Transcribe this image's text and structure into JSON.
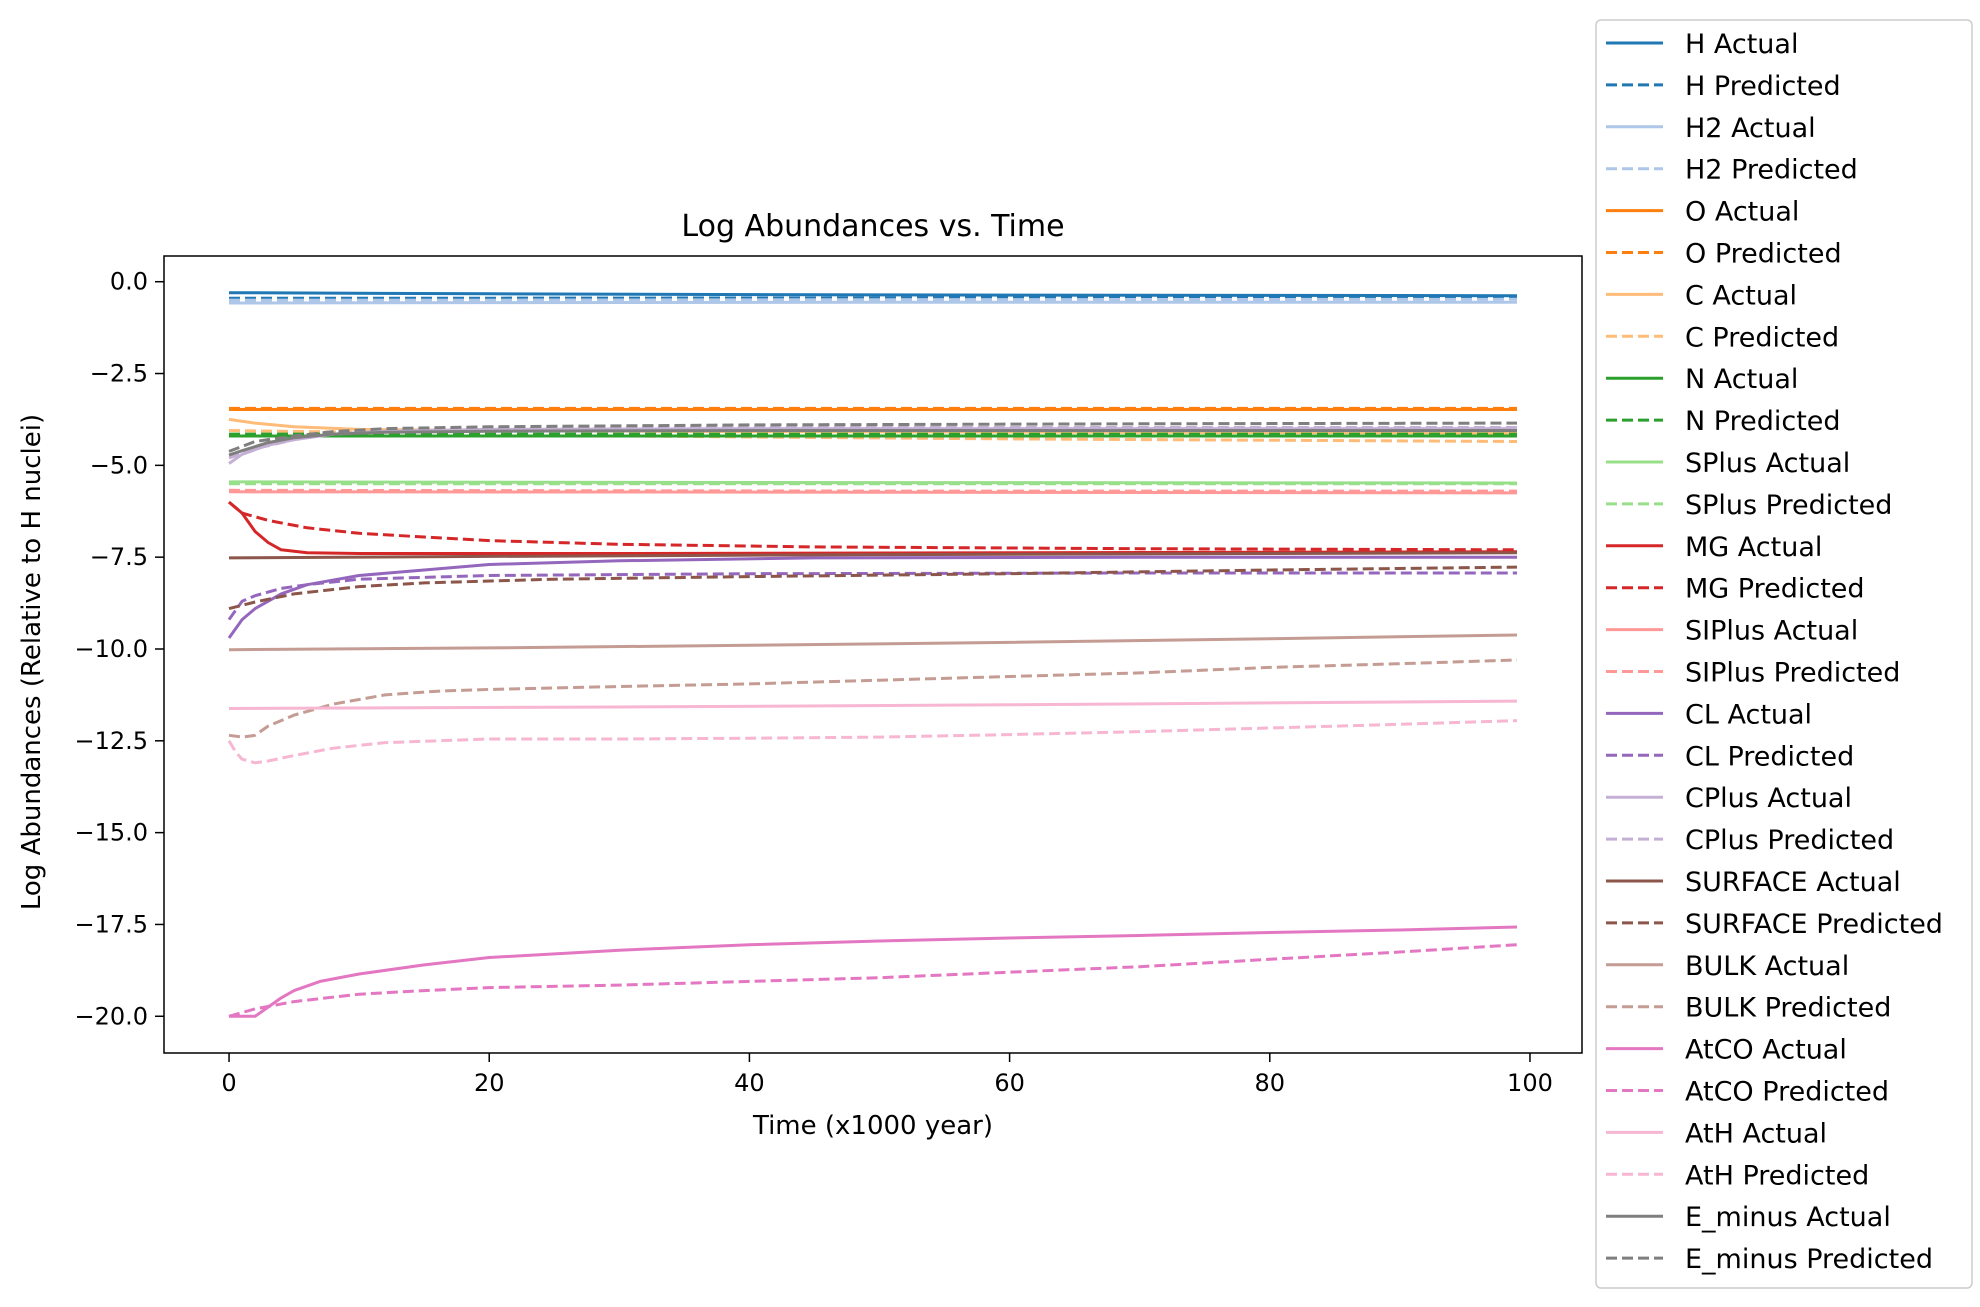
{
  "chart_data": {
    "type": "line",
    "title": "Log Abundances vs. Time",
    "xlabel": "Time (x1000 year)",
    "ylabel": "Log Abundances (Relative to H nuclei)",
    "xlim": [
      -5,
      104
    ],
    "ylim": [
      -21,
      0.7
    ],
    "xticks": [
      0,
      20,
      40,
      60,
      80,
      100
    ],
    "xtick_labels": [
      "0",
      "20",
      "40",
      "60",
      "80",
      "100"
    ],
    "yticks": [
      0,
      -2.5,
      -5,
      -7.5,
      -10,
      -12.5,
      -15,
      -17.5,
      -20
    ],
    "ytick_labels": [
      "0.0",
      "−2.5",
      "−5.0",
      "−7.5",
      "−10.0",
      "−12.5",
      "−15.0",
      "−17.5",
      "−20.0"
    ],
    "grid": false,
    "legend_position": "outside-right",
    "series": [
      {
        "name": "H Actual",
        "color": "#1f77b4",
        "dash": false,
        "points": [
          [
            0,
            -0.3
          ],
          [
            20,
            -0.33
          ],
          [
            50,
            -0.36
          ],
          [
            99,
            -0.38
          ]
        ]
      },
      {
        "name": "H Predicted",
        "color": "#1f77b4",
        "dash": true,
        "points": [
          [
            0,
            -0.45
          ],
          [
            20,
            -0.45
          ],
          [
            50,
            -0.44
          ],
          [
            99,
            -0.44
          ]
        ]
      },
      {
        "name": "H2 Actual",
        "color": "#aec7e8",
        "dash": false,
        "points": [
          [
            0,
            -0.58
          ],
          [
            20,
            -0.57
          ],
          [
            50,
            -0.56
          ],
          [
            99,
            -0.56
          ]
        ]
      },
      {
        "name": "H2 Predicted",
        "color": "#aec7e8",
        "dash": true,
        "points": [
          [
            0,
            -0.5
          ],
          [
            20,
            -0.5
          ],
          [
            50,
            -0.49
          ],
          [
            99,
            -0.48
          ]
        ]
      },
      {
        "name": "O Actual",
        "color": "#ff7f0e",
        "dash": false,
        "points": [
          [
            0,
            -3.48
          ],
          [
            50,
            -3.48
          ],
          [
            99,
            -3.48
          ]
        ]
      },
      {
        "name": "O Predicted",
        "color": "#ff7f0e",
        "dash": true,
        "points": [
          [
            0,
            -3.45
          ],
          [
            50,
            -3.45
          ],
          [
            99,
            -3.45
          ]
        ]
      },
      {
        "name": "C Actual",
        "color": "#ffbb78",
        "dash": false,
        "points": [
          [
            0,
            -3.75
          ],
          [
            2,
            -3.85
          ],
          [
            5,
            -3.95
          ],
          [
            10,
            -4.02
          ],
          [
            20,
            -4.05
          ],
          [
            40,
            -4.08
          ],
          [
            70,
            -4.1
          ],
          [
            99,
            -4.12
          ]
        ]
      },
      {
        "name": "C Predicted",
        "color": "#ffbb78",
        "dash": true,
        "points": [
          [
            0,
            -4.05
          ],
          [
            10,
            -4.1
          ],
          [
            30,
            -4.2
          ],
          [
            60,
            -4.28
          ],
          [
            99,
            -4.35
          ]
        ]
      },
      {
        "name": "N Actual",
        "color": "#2ca02c",
        "dash": false,
        "points": [
          [
            0,
            -4.2
          ],
          [
            50,
            -4.2
          ],
          [
            99,
            -4.2
          ]
        ]
      },
      {
        "name": "N Predicted",
        "color": "#2ca02c",
        "dash": true,
        "points": [
          [
            0,
            -4.15
          ],
          [
            50,
            -4.15
          ],
          [
            99,
            -4.15
          ]
        ]
      },
      {
        "name": "SPlus Actual",
        "color": "#98df8a",
        "dash": false,
        "points": [
          [
            0,
            -5.45
          ],
          [
            50,
            -5.47
          ],
          [
            99,
            -5.48
          ]
        ]
      },
      {
        "name": "SPlus Predicted",
        "color": "#98df8a",
        "dash": true,
        "points": [
          [
            0,
            -5.5
          ],
          [
            50,
            -5.5
          ],
          [
            99,
            -5.5
          ]
        ]
      },
      {
        "name": "MG Actual",
        "color": "#d62728",
        "dash": false,
        "points": [
          [
            0,
            -6.0
          ],
          [
            1,
            -6.3
          ],
          [
            2,
            -6.8
          ],
          [
            3,
            -7.1
          ],
          [
            4,
            -7.3
          ],
          [
            6,
            -7.38
          ],
          [
            10,
            -7.4
          ],
          [
            30,
            -7.4
          ],
          [
            60,
            -7.38
          ],
          [
            99,
            -7.35
          ]
        ]
      },
      {
        "name": "MG Predicted",
        "color": "#d62728",
        "dash": true,
        "points": [
          [
            0,
            -6.0
          ],
          [
            1,
            -6.3
          ],
          [
            3,
            -6.5
          ],
          [
            6,
            -6.7
          ],
          [
            10,
            -6.85
          ],
          [
            15,
            -6.95
          ],
          [
            20,
            -7.05
          ],
          [
            30,
            -7.15
          ],
          [
            45,
            -7.22
          ],
          [
            70,
            -7.27
          ],
          [
            99,
            -7.3
          ]
        ]
      },
      {
        "name": "SIPlus Actual",
        "color": "#ff9896",
        "dash": false,
        "points": [
          [
            0,
            -5.72
          ],
          [
            50,
            -5.73
          ],
          [
            99,
            -5.75
          ]
        ]
      },
      {
        "name": "SIPlus Predicted",
        "color": "#ff9896",
        "dash": true,
        "points": [
          [
            0,
            -5.68
          ],
          [
            50,
            -5.7
          ],
          [
            99,
            -5.7
          ]
        ]
      },
      {
        "name": "CL Actual",
        "color": "#9467bd",
        "dash": false,
        "points": [
          [
            0,
            -9.7
          ],
          [
            1,
            -9.2
          ],
          [
            2,
            -8.9
          ],
          [
            4,
            -8.5
          ],
          [
            6,
            -8.25
          ],
          [
            10,
            -8.0
          ],
          [
            15,
            -7.85
          ],
          [
            20,
            -7.7
          ],
          [
            30,
            -7.6
          ],
          [
            45,
            -7.52
          ],
          [
            70,
            -7.5
          ],
          [
            99,
            -7.5
          ]
        ]
      },
      {
        "name": "CL Predicted",
        "color": "#9467bd",
        "dash": true,
        "points": [
          [
            0,
            -9.2
          ],
          [
            1,
            -8.7
          ],
          [
            2,
            -8.55
          ],
          [
            4,
            -8.35
          ],
          [
            6,
            -8.25
          ],
          [
            10,
            -8.1
          ],
          [
            20,
            -8.0
          ],
          [
            40,
            -7.95
          ],
          [
            70,
            -7.93
          ],
          [
            99,
            -7.93
          ]
        ]
      },
      {
        "name": "CPlus Actual",
        "color": "#c5b0d5",
        "dash": false,
        "points": [
          [
            0,
            -4.95
          ],
          [
            1,
            -4.7
          ],
          [
            3,
            -4.45
          ],
          [
            5,
            -4.3
          ],
          [
            8,
            -4.15
          ],
          [
            12,
            -4.07
          ],
          [
            20,
            -4.02
          ],
          [
            40,
            -4.0
          ],
          [
            99,
            -4.0
          ]
        ]
      },
      {
        "name": "CPlus Predicted",
        "color": "#c5b0d5",
        "dash": true,
        "points": [
          [
            0,
            -4.8
          ],
          [
            2,
            -4.55
          ],
          [
            5,
            -4.3
          ],
          [
            8,
            -4.15
          ],
          [
            12,
            -4.05
          ],
          [
            20,
            -4.0
          ],
          [
            40,
            -3.97
          ],
          [
            99,
            -3.97
          ]
        ]
      },
      {
        "name": "SURFACE Actual",
        "color": "#8c564b",
        "dash": false,
        "points": [
          [
            0,
            -7.52
          ],
          [
            20,
            -7.48
          ],
          [
            50,
            -7.43
          ],
          [
            99,
            -7.38
          ]
        ]
      },
      {
        "name": "SURFACE Predicted",
        "color": "#8c564b",
        "dash": true,
        "points": [
          [
            0,
            -8.9
          ],
          [
            2,
            -8.72
          ],
          [
            5,
            -8.5
          ],
          [
            10,
            -8.3
          ],
          [
            15,
            -8.2
          ],
          [
            25,
            -8.1
          ],
          [
            40,
            -8.03
          ],
          [
            60,
            -7.95
          ],
          [
            80,
            -7.85
          ],
          [
            99,
            -7.77
          ]
        ]
      },
      {
        "name": "BULK Actual",
        "color": "#c49c94",
        "dash": false,
        "points": [
          [
            0,
            -10.02
          ],
          [
            20,
            -9.97
          ],
          [
            40,
            -9.9
          ],
          [
            60,
            -9.82
          ],
          [
            80,
            -9.72
          ],
          [
            99,
            -9.62
          ]
        ]
      },
      {
        "name": "BULK Predicted",
        "color": "#c49c94",
        "dash": true,
        "points": [
          [
            0,
            -12.35
          ],
          [
            1,
            -12.4
          ],
          [
            2,
            -12.35
          ],
          [
            3,
            -12.1
          ],
          [
            5,
            -11.8
          ],
          [
            8,
            -11.5
          ],
          [
            12,
            -11.25
          ],
          [
            16,
            -11.15
          ],
          [
            20,
            -11.1
          ],
          [
            30,
            -11.02
          ],
          [
            40,
            -10.95
          ],
          [
            50,
            -10.85
          ],
          [
            60,
            -10.75
          ],
          [
            70,
            -10.65
          ],
          [
            80,
            -10.5
          ],
          [
            90,
            -10.4
          ],
          [
            99,
            -10.3
          ]
        ]
      },
      {
        "name": "AtCO Actual",
        "color": "#e377c2",
        "dash": false,
        "points": [
          [
            0,
            -20.0
          ],
          [
            1,
            -20.0
          ],
          [
            2,
            -20.0
          ],
          [
            3,
            -19.75
          ],
          [
            4,
            -19.5
          ],
          [
            5,
            -19.3
          ],
          [
            7,
            -19.05
          ],
          [
            10,
            -18.85
          ],
          [
            15,
            -18.6
          ],
          [
            20,
            -18.4
          ],
          [
            30,
            -18.2
          ],
          [
            40,
            -18.05
          ],
          [
            50,
            -17.95
          ],
          [
            60,
            -17.87
          ],
          [
            70,
            -17.8
          ],
          [
            80,
            -17.72
          ],
          [
            90,
            -17.65
          ],
          [
            99,
            -17.57
          ]
        ]
      },
      {
        "name": "AtCO Predicted",
        "color": "#e377c2",
        "dash": true,
        "points": [
          [
            0,
            -20.0
          ],
          [
            2,
            -19.8
          ],
          [
            5,
            -19.6
          ],
          [
            10,
            -19.4
          ],
          [
            15,
            -19.3
          ],
          [
            20,
            -19.22
          ],
          [
            30,
            -19.15
          ],
          [
            40,
            -19.05
          ],
          [
            50,
            -18.95
          ],
          [
            60,
            -18.8
          ],
          [
            70,
            -18.65
          ],
          [
            80,
            -18.45
          ],
          [
            90,
            -18.25
          ],
          [
            99,
            -18.05
          ]
        ]
      },
      {
        "name": "AtH Actual",
        "color": "#f7b6d2",
        "dash": false,
        "points": [
          [
            0,
            -11.62
          ],
          [
            30,
            -11.58
          ],
          [
            60,
            -11.52
          ],
          [
            99,
            -11.42
          ]
        ]
      },
      {
        "name": "AtH Predicted",
        "color": "#f7b6d2",
        "dash": true,
        "points": [
          [
            0,
            -12.5
          ],
          [
            0.5,
            -12.8
          ],
          [
            1,
            -13.0
          ],
          [
            2,
            -13.1
          ],
          [
            3,
            -13.05
          ],
          [
            5,
            -12.9
          ],
          [
            8,
            -12.7
          ],
          [
            12,
            -12.55
          ],
          [
            20,
            -12.45
          ],
          [
            30,
            -12.45
          ],
          [
            40,
            -12.43
          ],
          [
            50,
            -12.4
          ],
          [
            60,
            -12.33
          ],
          [
            70,
            -12.25
          ],
          [
            80,
            -12.15
          ],
          [
            90,
            -12.05
          ],
          [
            99,
            -11.95
          ]
        ]
      },
      {
        "name": "E_minus Actual",
        "color": "#7f7f7f",
        "dash": false,
        "points": [
          [
            0,
            -4.72
          ],
          [
            1,
            -4.6
          ],
          [
            3,
            -4.38
          ],
          [
            5,
            -4.25
          ],
          [
            8,
            -4.15
          ],
          [
            12,
            -4.1
          ],
          [
            20,
            -4.07
          ],
          [
            40,
            -4.05
          ],
          [
            99,
            -4.05
          ]
        ]
      },
      {
        "name": "E_minus Predicted",
        "color": "#7f7f7f",
        "dash": true,
        "points": [
          [
            0,
            -4.62
          ],
          [
            2,
            -4.35
          ],
          [
            5,
            -4.2
          ],
          [
            8,
            -4.08
          ],
          [
            12,
            -4.0
          ],
          [
            20,
            -3.95
          ],
          [
            40,
            -3.9
          ],
          [
            70,
            -3.87
          ],
          [
            99,
            -3.85
          ]
        ]
      }
    ]
  }
}
